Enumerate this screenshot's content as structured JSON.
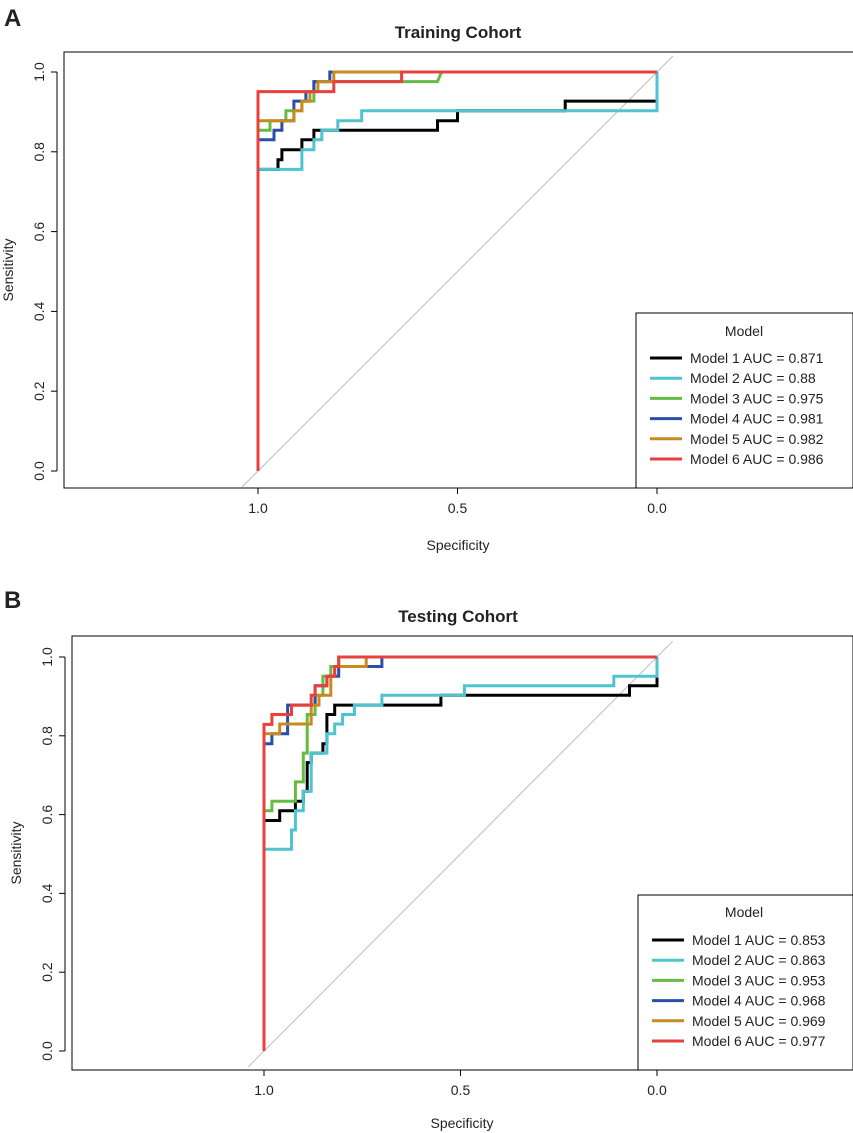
{
  "figure": {
    "panel_a_letter": "A",
    "panel_b_letter": "B"
  },
  "colors": {
    "Model 1": "#000000",
    "Model 2": "#4fc4cf",
    "Model 3": "#66bb44",
    "Model 4": "#2b4fa8",
    "Model 5": "#c98b1e",
    "Model 6": "#e8403d",
    "diagonal": "#bdbdbd"
  },
  "chart_data": [
    {
      "type": "line",
      "title": "Training Cohort",
      "xlabel": "Specificity",
      "ylabel": "Sensitivity",
      "xlim": [
        1.5,
        -0.5
      ],
      "ylim": [
        0,
        1
      ],
      "xticks": [
        "1.0",
        "0.5",
        "0.0"
      ],
      "yticks": [
        "0.0",
        "0.2",
        "0.4",
        "0.6",
        "0.8",
        "1.0"
      ],
      "legend_title": "Model",
      "legend_position": "bottom-right",
      "reference_line": [
        [
          1.04,
          -0.04
        ],
        [
          -0.04,
          1.04
        ]
      ],
      "series": [
        {
          "name": "Model 1",
          "auc": "0.871",
          "legend_label": "Model 1  AUC = 0.871",
          "x": [
            1,
            1,
            0.95,
            0.95,
            0.94,
            0.94,
            0.89,
            0.89,
            0.86,
            0.86,
            0.83,
            0.83,
            0.55,
            0.55,
            0.5,
            0.5,
            0.23,
            0.23,
            0,
            0
          ],
          "y": [
            0,
            0.756,
            0.756,
            0.78,
            0.78,
            0.805,
            0.805,
            0.83,
            0.83,
            0.854,
            0.854,
            0.854,
            0.854,
            0.878,
            0.878,
            0.903,
            0.903,
            0.927,
            0.927,
            1
          ]
        },
        {
          "name": "Model 2",
          "auc": "0.88",
          "legend_label": "Model 2  AUC = 0.88",
          "x": [
            1,
            1,
            0.89,
            0.89,
            0.86,
            0.86,
            0.84,
            0.84,
            0.8,
            0.8,
            0.74,
            0.74,
            0.03,
            0.03,
            0,
            0
          ],
          "y": [
            0,
            0.756,
            0.756,
            0.805,
            0.805,
            0.83,
            0.83,
            0.854,
            0.854,
            0.878,
            0.878,
            0.903,
            0.903,
            0.903,
            0.903,
            1
          ]
        },
        {
          "name": "Model 3",
          "auc": "0.975",
          "legend_label": "Model 3  AUC = 0.975",
          "x": [
            1,
            1,
            0.97,
            0.97,
            0.93,
            0.93,
            0.89,
            0.89,
            0.86,
            0.86,
            0.55,
            0.55,
            0.54,
            0
          ],
          "y": [
            0,
            0.854,
            0.854,
            0.878,
            0.878,
            0.903,
            0.903,
            0.927,
            0.927,
            0.976,
            0.976,
            0.976,
            1,
            1
          ]
        },
        {
          "name": "Model 4",
          "auc": "0.981",
          "legend_label": "Model 4  AUC = 0.981",
          "x": [
            1,
            1,
            0.96,
            0.96,
            0.94,
            0.94,
            0.91,
            0.91,
            0.88,
            0.88,
            0.86,
            0.86,
            0.82,
            0.82,
            0
          ],
          "y": [
            0,
            0.83,
            0.83,
            0.854,
            0.854,
            0.878,
            0.878,
            0.927,
            0.927,
            0.951,
            0.951,
            0.976,
            0.976,
            1,
            1
          ]
        },
        {
          "name": "Model 5",
          "auc": "0.982",
          "legend_label": "Model 5  AUC = 0.982",
          "x": [
            1,
            1,
            0.91,
            0.91,
            0.89,
            0.89,
            0.87,
            0.87,
            0.85,
            0.85,
            0.83,
            0.83,
            0.81,
            0.81,
            0
          ],
          "y": [
            0,
            0.878,
            0.878,
            0.903,
            0.903,
            0.927,
            0.927,
            0.951,
            0.951,
            0.976,
            0.976,
            0.976,
            0.976,
            1,
            1
          ]
        },
        {
          "name": "Model 6",
          "auc": "0.986",
          "legend_label": "Model 6  AUC = 0.986",
          "x": [
            1,
            1,
            0.84,
            0.84,
            0.81,
            0.81,
            0.64,
            0.64,
            0
          ],
          "y": [
            0,
            0.951,
            0.951,
            0.951,
            0.951,
            0.976,
            0.976,
            1,
            1
          ]
        }
      ]
    },
    {
      "type": "line",
      "title": "Testing Cohort",
      "xlabel": "Specificity",
      "ylabel": "Sensitivity",
      "xlim": [
        1.5,
        -0.5
      ],
      "ylim": [
        0,
        1
      ],
      "xticks": [
        "1.0",
        "0.5",
        "0.0"
      ],
      "yticks": [
        "0.0",
        "0.2",
        "0.4",
        "0.6",
        "0.8",
        "1.0"
      ],
      "legend_title": "Model",
      "legend_position": "bottom-right",
      "reference_line": [
        [
          1.04,
          -0.04
        ],
        [
          -0.04,
          1.04
        ]
      ],
      "series": [
        {
          "name": "Model 1",
          "auc": "0.853",
          "legend_label": "Model 1  AUC = 0.853",
          "x": [
            1,
            1,
            0.96,
            0.96,
            0.92,
            0.92,
            0.9,
            0.9,
            0.89,
            0.89,
            0.88,
            0.88,
            0.87,
            0.87,
            0.85,
            0.85,
            0.84,
            0.84,
            0.82,
            0.82,
            0.79,
            0.79,
            0.55,
            0.55,
            0.07,
            0.07,
            0,
            0
          ],
          "y": [
            0,
            0.585,
            0.585,
            0.61,
            0.61,
            0.634,
            0.634,
            0.659,
            0.659,
            0.732,
            0.732,
            0.756,
            0.756,
            0.756,
            0.756,
            0.78,
            0.78,
            0.854,
            0.854,
            0.878,
            0.878,
            0.878,
            0.878,
            0.903,
            0.903,
            0.927,
            0.927,
            1
          ]
        },
        {
          "name": "Model 2",
          "auc": "0.863",
          "legend_label": "Model 2  AUC = 0.863",
          "x": [
            1,
            1,
            0.93,
            0.93,
            0.92,
            0.92,
            0.9,
            0.9,
            0.88,
            0.88,
            0.84,
            0.84,
            0.82,
            0.82,
            0.8,
            0.8,
            0.77,
            0.77,
            0.7,
            0.7,
            0.49,
            0.49,
            0.11,
            0.11,
            0.04,
            0.04,
            0,
            0
          ],
          "y": [
            0,
            0.512,
            0.512,
            0.561,
            0.561,
            0.61,
            0.61,
            0.659,
            0.659,
            0.756,
            0.756,
            0.805,
            0.805,
            0.83,
            0.83,
            0.854,
            0.854,
            0.878,
            0.878,
            0.903,
            0.903,
            0.927,
            0.927,
            0.951,
            0.951,
            0.951,
            0.951,
            1
          ]
        },
        {
          "name": "Model 3",
          "auc": "0.953",
          "legend_label": "Model 3  AUC = 0.953",
          "x": [
            1,
            1,
            0.98,
            0.98,
            0.92,
            0.92,
            0.9,
            0.9,
            0.89,
            0.89,
            0.87,
            0.87,
            0.85,
            0.85,
            0.83,
            0.83,
            0.81,
            0.81,
            0
          ],
          "y": [
            0,
            0.61,
            0.61,
            0.634,
            0.634,
            0.683,
            0.683,
            0.756,
            0.756,
            0.854,
            0.854,
            0.903,
            0.903,
            0.951,
            0.951,
            0.976,
            0.976,
            1,
            1
          ]
        },
        {
          "name": "Model 4",
          "auc": "0.968",
          "legend_label": "Model 4  AUC = 0.968",
          "x": [
            1,
            1,
            0.98,
            0.98,
            0.94,
            0.94,
            0.9,
            0.9,
            0.87,
            0.87,
            0.84,
            0.84,
            0.81,
            0.81,
            0.7,
            0.7,
            0
          ],
          "y": [
            0,
            0.78,
            0.78,
            0.805,
            0.805,
            0.878,
            0.878,
            0.878,
            0.878,
            0.927,
            0.927,
            0.951,
            0.951,
            0.976,
            0.976,
            1,
            1
          ]
        },
        {
          "name": "Model 5",
          "auc": "0.969",
          "legend_label": "Model 5  AUC = 0.969",
          "x": [
            1,
            1,
            0.96,
            0.96,
            0.92,
            0.92,
            0.88,
            0.88,
            0.86,
            0.86,
            0.83,
            0.83,
            0.82,
            0.82,
            0.74,
            0.74,
            0
          ],
          "y": [
            0,
            0.805,
            0.805,
            0.83,
            0.83,
            0.83,
            0.83,
            0.878,
            0.878,
            0.903,
            0.903,
            0.951,
            0.951,
            0.976,
            0.976,
            1,
            1
          ]
        },
        {
          "name": "Model 6",
          "auc": "0.977",
          "legend_label": "Model 6  AUC = 0.977",
          "x": [
            1,
            1,
            0.98,
            0.98,
            0.96,
            0.96,
            0.93,
            0.93,
            0.91,
            0.91,
            0.88,
            0.88,
            0.87,
            0.87,
            0.84,
            0.84,
            0.82,
            0.82,
            0.81,
            0.81,
            0
          ],
          "y": [
            0,
            0.829,
            0.829,
            0.854,
            0.854,
            0.854,
            0.854,
            0.878,
            0.878,
            0.878,
            0.878,
            0.903,
            0.903,
            0.927,
            0.927,
            0.951,
            0.951,
            0.976,
            0.976,
            1,
            1
          ]
        }
      ]
    }
  ]
}
